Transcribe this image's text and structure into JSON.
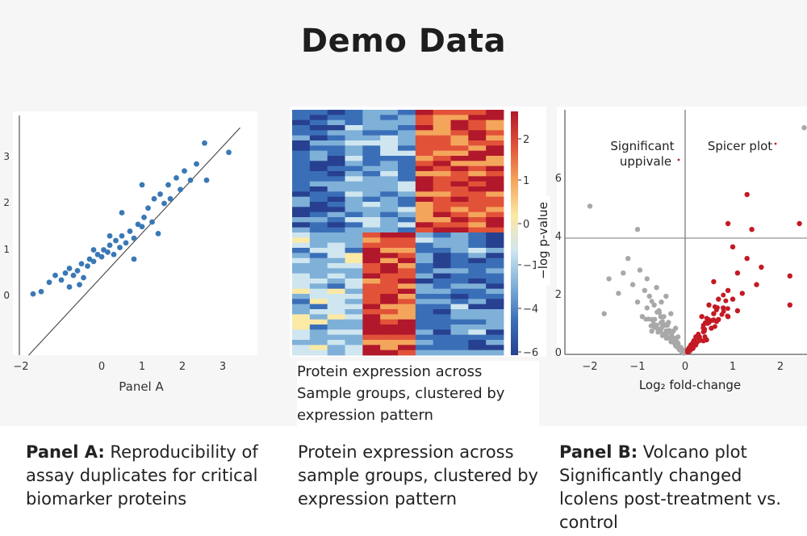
{
  "title": "Demo Data",
  "chart_data": [
    {
      "type": "scatter",
      "xlabel": "Panel A",
      "ylabel": "",
      "xlim": [
        -3,
        3.5
      ],
      "ylim": [
        -1.2,
        4.0
      ],
      "xticks": [
        "−2",
        "0",
        "1",
        "2",
        "3"
      ],
      "xtick_values": [
        -2,
        0,
        1,
        2,
        3
      ],
      "yticks": [
        "0",
        "1",
        "2",
        "3"
      ],
      "ytick_values": [
        0,
        1,
        2,
        3
      ],
      "color": "#3a78b5",
      "trendline": {
        "x": [
          -1.8,
          3.55
        ],
        "y": [
          -1.0,
          3.7
        ]
      },
      "points": [
        {
          "x": -1.7,
          "y": 0.05
        },
        {
          "x": -1.5,
          "y": 0.1
        },
        {
          "x": -1.3,
          "y": 0.3
        },
        {
          "x": -1.15,
          "y": 0.45
        },
        {
          "x": -1.0,
          "y": 0.35
        },
        {
          "x": -0.9,
          "y": 0.5
        },
        {
          "x": -0.8,
          "y": 0.6
        },
        {
          "x": -0.7,
          "y": 0.45
        },
        {
          "x": -0.6,
          "y": 0.55
        },
        {
          "x": -0.5,
          "y": 0.7
        },
        {
          "x": -0.45,
          "y": 0.4
        },
        {
          "x": -0.35,
          "y": 0.65
        },
        {
          "x": -0.3,
          "y": 0.8
        },
        {
          "x": -0.2,
          "y": 0.75
        },
        {
          "x": -0.1,
          "y": 0.9
        },
        {
          "x": 0.0,
          "y": 0.85
        },
        {
          "x": 0.05,
          "y": 1.0
        },
        {
          "x": 0.15,
          "y": 0.95
        },
        {
          "x": 0.2,
          "y": 1.1
        },
        {
          "x": 0.3,
          "y": 0.9
        },
        {
          "x": 0.35,
          "y": 1.2
        },
        {
          "x": 0.45,
          "y": 1.05
        },
        {
          "x": 0.5,
          "y": 1.3
        },
        {
          "x": 0.6,
          "y": 1.15
        },
        {
          "x": 0.7,
          "y": 1.4
        },
        {
          "x": 0.8,
          "y": 1.25
        },
        {
          "x": 0.9,
          "y": 1.55
        },
        {
          "x": 1.0,
          "y": 1.5
        },
        {
          "x": 1.05,
          "y": 1.7
        },
        {
          "x": 1.15,
          "y": 1.9
        },
        {
          "x": 1.25,
          "y": 1.6
        },
        {
          "x": 1.3,
          "y": 2.1
        },
        {
          "x": 1.45,
          "y": 2.2
        },
        {
          "x": 1.55,
          "y": 2.0
        },
        {
          "x": 1.65,
          "y": 2.4
        },
        {
          "x": 1.7,
          "y": 2.1
        },
        {
          "x": 1.85,
          "y": 2.55
        },
        {
          "x": 1.95,
          "y": 2.3
        },
        {
          "x": 2.05,
          "y": 2.7
        },
        {
          "x": 2.2,
          "y": 2.5
        },
        {
          "x": 2.35,
          "y": 2.85
        },
        {
          "x": 2.55,
          "y": 3.3
        },
        {
          "x": 2.6,
          "y": 2.5
        },
        {
          "x": 3.15,
          "y": 3.1
        },
        {
          "x": 1.0,
          "y": 2.4
        },
        {
          "x": 0.5,
          "y": 1.8
        },
        {
          "x": 0.2,
          "y": 1.3
        },
        {
          "x": -0.2,
          "y": 1.0
        },
        {
          "x": 0.8,
          "y": 0.8
        },
        {
          "x": 1.4,
          "y": 1.35
        },
        {
          "x": -0.8,
          "y": 0.2
        },
        {
          "x": -0.55,
          "y": 0.25
        }
      ]
    },
    {
      "type": "heatmap",
      "caption": "Protein expression across Sample groups, clustered by expression pattern",
      "columns": 12,
      "rows": 48,
      "colorbar": {
        "ticks": [
          "2",
          "1",
          "0",
          "−1",
          "−4",
          "−6"
        ],
        "tick_values": [
          2,
          1,
          0,
          -1,
          -4,
          -6
        ],
        "range": [
          -6,
          2.5
        ]
      },
      "blocks": [
        {
          "rows": "0-23",
          "columns": "0-6",
          "level": "low"
        },
        {
          "rows": "0-23",
          "columns": "7-11",
          "level": "high"
        },
        {
          "rows": "24-47",
          "columns": "0-3",
          "level": "low-mid"
        },
        {
          "rows": "24-47",
          "columns": "4-6",
          "level": "high"
        },
        {
          "rows": "24-47",
          "columns": "7-11",
          "level": "low"
        }
      ],
      "colors": [
        "#27408f",
        "#3a6fb8",
        "#7fb0d8",
        "#cfe6f0",
        "#fbe9a6",
        "#f4a55c",
        "#e15238",
        "#b2182b"
      ]
    },
    {
      "type": "scatter",
      "title": "",
      "xlabel": "Log₂ fold-change",
      "ylabel": "−log p-value",
      "xlim": [
        -2.6,
        3.3
      ],
      "ylim": [
        0,
        8.2
      ],
      "xticks": [
        "−2",
        "−1",
        "0",
        "1",
        "2"
      ],
      "xtick_values": [
        -2,
        -1,
        0,
        1,
        2
      ],
      "yticks": [
        "0",
        "2",
        "4",
        "6"
      ],
      "ytick_values": [
        0,
        2,
        4,
        6
      ],
      "threshold_y": 4,
      "annotations": [
        "Significant",
        "uppivale",
        "Spicer plot"
      ],
      "series": [
        {
          "color": "#a8a8a8",
          "points": [
            {
              "x": 2.5,
              "y": 7.8
            },
            {
              "x": -2.0,
              "y": 5.1
            },
            {
              "x": -1.0,
              "y": 4.3
            },
            {
              "x": -1.7,
              "y": 1.4
            },
            {
              "x": -1.6,
              "y": 2.6
            },
            {
              "x": -1.4,
              "y": 2.1
            },
            {
              "x": -1.3,
              "y": 2.8
            },
            {
              "x": -1.2,
              "y": 3.3
            },
            {
              "x": -1.1,
              "y": 2.4
            },
            {
              "x": -1.0,
              "y": 1.8
            },
            {
              "x": -0.95,
              "y": 2.9
            },
            {
              "x": -0.9,
              "y": 1.3
            },
            {
              "x": -0.85,
              "y": 2.2
            },
            {
              "x": -0.8,
              "y": 1.6
            },
            {
              "x": -0.75,
              "y": 2.0
            },
            {
              "x": -0.7,
              "y": 1.2
            },
            {
              "x": -0.65,
              "y": 1.7
            },
            {
              "x": -0.6,
              "y": 1.0
            },
            {
              "x": -0.55,
              "y": 1.5
            },
            {
              "x": -0.5,
              "y": 0.9
            },
            {
              "x": -0.45,
              "y": 1.3
            },
            {
              "x": -0.4,
              "y": 0.7
            },
            {
              "x": -0.35,
              "y": 1.1
            },
            {
              "x": -0.3,
              "y": 0.5
            },
            {
              "x": -0.25,
              "y": 0.8
            },
            {
              "x": -0.2,
              "y": 0.3
            },
            {
              "x": -0.15,
              "y": 0.6
            },
            {
              "x": -0.1,
              "y": 0.2
            },
            {
              "x": -0.05,
              "y": 0.15
            },
            {
              "x": -0.5,
              "y": 1.8
            },
            {
              "x": -0.3,
              "y": 1.4
            },
            {
              "x": -0.6,
              "y": 2.3
            },
            {
              "x": -0.4,
              "y": 2.0
            },
            {
              "x": -0.7,
              "y": 0.8
            },
            {
              "x": -0.2,
              "y": 0.9
            },
            {
              "x": -0.8,
              "y": 2.6
            },
            {
              "x": 0.1,
              "y": 0.1
            }
          ]
        },
        {
          "color": "#c41a24",
          "points": [
            {
              "x": 1.3,
              "y": 5.5
            },
            {
              "x": 0.9,
              "y": 4.5
            },
            {
              "x": 1.4,
              "y": 4.3
            },
            {
              "x": 2.4,
              "y": 4.5
            },
            {
              "x": 1.0,
              "y": 3.7
            },
            {
              "x": 1.3,
              "y": 3.3
            },
            {
              "x": 1.6,
              "y": 3.0
            },
            {
              "x": 2.2,
              "y": 2.7
            },
            {
              "x": 2.2,
              "y": 1.7
            },
            {
              "x": 1.5,
              "y": 2.4
            },
            {
              "x": 1.1,
              "y": 2.8
            },
            {
              "x": 0.9,
              "y": 2.2
            },
            {
              "x": 0.7,
              "y": 1.9
            },
            {
              "x": 0.6,
              "y": 1.4
            },
            {
              "x": 0.5,
              "y": 1.1
            },
            {
              "x": 0.4,
              "y": 0.8
            },
            {
              "x": 0.3,
              "y": 0.6
            },
            {
              "x": 0.2,
              "y": 0.4
            },
            {
              "x": 0.15,
              "y": 0.2
            },
            {
              "x": 0.8,
              "y": 1.6
            },
            {
              "x": 1.0,
              "y": 1.9
            },
            {
              "x": 1.2,
              "y": 2.1
            },
            {
              "x": 0.6,
              "y": 2.5
            },
            {
              "x": 0.7,
              "y": 1.2
            },
            {
              "x": 0.9,
              "y": 1.3
            },
            {
              "x": 1.1,
              "y": 1.5
            },
            {
              "x": 0.5,
              "y": 1.7
            },
            {
              "x": 0.45,
              "y": 0.5
            },
            {
              "x": 0.35,
              "y": 1.3
            },
            {
              "x": 0.55,
              "y": 0.9
            }
          ]
        }
      ]
    }
  ],
  "captions": {
    "panel_a_bold": "Panel A:",
    "panel_a": " Reproducibility of assay duplicates for critical biomarker proteins",
    "heatmap": "Protein expression across sample groups, clustered by expression pattern",
    "panel_b_bold": "Panel B:",
    "panel_b": " Volcano plot Significantly changed lcolens post-treatment vs. control"
  }
}
